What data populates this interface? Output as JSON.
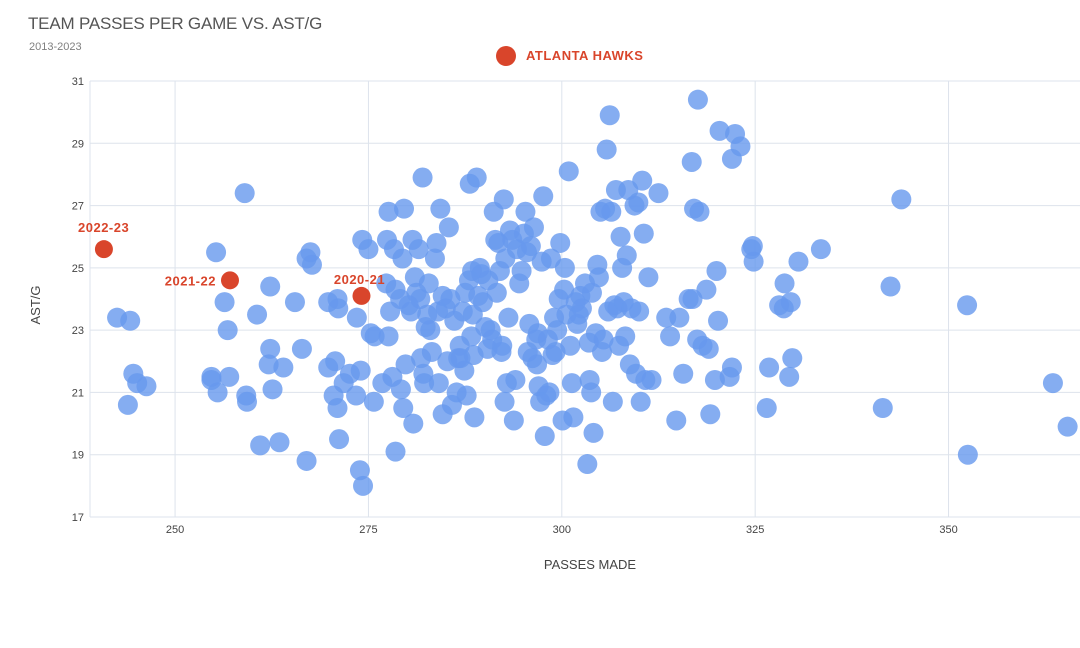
{
  "title": "TEAM PASSES PER GAME VS. AST/G",
  "subtitle": "2013-2023",
  "chart_data": {
    "type": "scatter",
    "title": "TEAM PASSES PER GAME VS. AST/G",
    "subtitle": "2013-2023",
    "xlabel": "PASSES MADE",
    "ylabel": "AST/G",
    "xlim": [
      239,
      367
    ],
    "ylim": [
      17,
      31
    ],
    "xticks": [
      250,
      275,
      300,
      325,
      350
    ],
    "yticks": [
      17,
      19,
      21,
      23,
      25,
      27,
      29,
      31
    ],
    "grid": true,
    "legend": [
      {
        "name": "ATLANTA HAWKS",
        "color": "#d9452b"
      }
    ],
    "colors": {
      "all_teams": "#6699ee",
      "highlight": "#d9452b"
    },
    "highlights": [
      {
        "label": "2022-23",
        "x": 240.8,
        "y": 25.6
      },
      {
        "label": "2021-22",
        "x": 257.1,
        "y": 24.6
      },
      {
        "label": "2020-21",
        "x": 274.1,
        "y": 24.1
      }
    ],
    "points": [
      [
        242.5,
        23.4
      ],
      [
        244.2,
        23.3
      ],
      [
        244.6,
        21.6
      ],
      [
        245.1,
        21.3
      ],
      [
        246.3,
        21.2
      ],
      [
        243.9,
        20.6
      ],
      [
        254.7,
        21.5
      ],
      [
        254.7,
        21.4
      ],
      [
        255.5,
        21.0
      ],
      [
        255.3,
        25.5
      ],
      [
        256.4,
        23.9
      ],
      [
        256.8,
        23.0
      ],
      [
        257.0,
        21.5
      ],
      [
        259.0,
        27.4
      ],
      [
        259.2,
        20.9
      ],
      [
        259.3,
        20.7
      ],
      [
        260.6,
        23.5
      ],
      [
        261.0,
        19.3
      ],
      [
        262.3,
        24.4
      ],
      [
        262.3,
        22.4
      ],
      [
        262.1,
        21.9
      ],
      [
        262.6,
        21.1
      ],
      [
        263.5,
        19.4
      ],
      [
        264.0,
        21.8
      ],
      [
        265.5,
        23.9
      ],
      [
        266.4,
        22.4
      ],
      [
        267.0,
        25.3
      ],
      [
        267.5,
        25.5
      ],
      [
        267.7,
        25.1
      ],
      [
        267.0,
        18.8
      ],
      [
        269.8,
        23.9
      ],
      [
        269.8,
        21.8
      ],
      [
        270.5,
        20.9
      ],
      [
        270.7,
        22.0
      ],
      [
        271.0,
        24.0
      ],
      [
        271.1,
        23.7
      ],
      [
        271.2,
        19.5
      ],
      [
        271.0,
        20.5
      ],
      [
        271.8,
        21.3
      ],
      [
        272.6,
        21.6
      ],
      [
        273.4,
        20.9
      ],
      [
        273.5,
        23.4
      ],
      [
        273.9,
        18.5
      ],
      [
        274.0,
        21.7
      ],
      [
        274.3,
        18.0
      ],
      [
        274.2,
        25.9
      ],
      [
        275.0,
        25.6
      ],
      [
        275.3,
        22.9
      ],
      [
        275.8,
        22.8
      ],
      [
        275.7,
        20.7
      ],
      [
        276.8,
        21.3
      ],
      [
        277.4,
        25.9
      ],
      [
        277.6,
        26.8
      ],
      [
        277.3,
        24.5
      ],
      [
        277.8,
        23.6
      ],
      [
        277.6,
        22.8
      ],
      [
        278.1,
        21.5
      ],
      [
        278.3,
        25.6
      ],
      [
        278.5,
        24.3
      ],
      [
        278.5,
        19.1
      ],
      [
        279.1,
        24.0
      ],
      [
        279.2,
        21.1
      ],
      [
        279.5,
        20.5
      ],
      [
        279.4,
        25.3
      ],
      [
        279.6,
        26.9
      ],
      [
        279.8,
        21.9
      ],
      [
        280.2,
        23.8
      ],
      [
        280.5,
        23.6
      ],
      [
        280.7,
        25.9
      ],
      [
        280.8,
        20.0
      ],
      [
        281.0,
        24.7
      ],
      [
        281.2,
        24.2
      ],
      [
        281.5,
        25.6
      ],
      [
        281.7,
        24.0
      ],
      [
        281.8,
        22.1
      ],
      [
        282.0,
        27.9
      ],
      [
        282.1,
        21.6
      ],
      [
        282.2,
        21.3
      ],
      [
        282.4,
        23.1
      ],
      [
        282.6,
        23.5
      ],
      [
        282.8,
        24.5
      ],
      [
        283.0,
        23.0
      ],
      [
        283.2,
        22.3
      ],
      [
        283.6,
        25.3
      ],
      [
        283.8,
        25.8
      ],
      [
        284.0,
        23.6
      ],
      [
        284.1,
        21.3
      ],
      [
        284.3,
        26.9
      ],
      [
        284.6,
        20.3
      ],
      [
        284.6,
        24.1
      ],
      [
        285.0,
        23.7
      ],
      [
        285.2,
        22.0
      ],
      [
        285.4,
        26.3
      ],
      [
        285.6,
        24.0
      ],
      [
        285.8,
        20.6
      ],
      [
        286.1,
        23.3
      ],
      [
        286.4,
        21.0
      ],
      [
        286.6,
        22.1
      ],
      [
        286.8,
        22.5
      ],
      [
        286.9,
        22.1
      ],
      [
        287.2,
        23.6
      ],
      [
        287.4,
        21.7
      ],
      [
        287.5,
        24.2
      ],
      [
        287.7,
        20.9
      ],
      [
        288.0,
        24.6
      ],
      [
        288.1,
        27.7
      ],
      [
        288.3,
        22.8
      ],
      [
        288.4,
        24.9
      ],
      [
        288.5,
        23.5
      ],
      [
        288.6,
        22.2
      ],
      [
        288.7,
        20.2
      ],
      [
        289.0,
        27.9
      ],
      [
        289.2,
        24.1
      ],
      [
        289.4,
        25.0
      ],
      [
        289.6,
        24.8
      ],
      [
        289.8,
        23.9
      ],
      [
        290.1,
        23.1
      ],
      [
        290.4,
        22.4
      ],
      [
        290.5,
        24.6
      ],
      [
        290.8,
        23.0
      ],
      [
        291.0,
        22.7
      ],
      [
        291.2,
        26.8
      ],
      [
        291.4,
        25.9
      ],
      [
        291.6,
        24.2
      ],
      [
        291.8,
        25.8
      ],
      [
        292.0,
        24.9
      ],
      [
        292.2,
        22.3
      ],
      [
        292.3,
        22.5
      ],
      [
        292.5,
        27.2
      ],
      [
        292.6,
        20.7
      ],
      [
        292.7,
        25.3
      ],
      [
        292.9,
        21.3
      ],
      [
        293.1,
        23.4
      ],
      [
        293.3,
        26.2
      ],
      [
        293.6,
        25.9
      ],
      [
        293.8,
        20.1
      ],
      [
        294.0,
        21.4
      ],
      [
        294.2,
        25.6
      ],
      [
        294.5,
        24.5
      ],
      [
        294.8,
        24.9
      ],
      [
        295.1,
        26.1
      ],
      [
        295.3,
        26.8
      ],
      [
        295.5,
        25.5
      ],
      [
        295.6,
        22.3
      ],
      [
        295.8,
        23.2
      ],
      [
        296.0,
        25.7
      ],
      [
        296.2,
        22.1
      ],
      [
        296.4,
        26.3
      ],
      [
        296.7,
        22.7
      ],
      [
        296.8,
        21.9
      ],
      [
        296.9,
        22.9
      ],
      [
        297.0,
        21.2
      ],
      [
        297.2,
        20.7
      ],
      [
        297.4,
        25.2
      ],
      [
        297.6,
        27.3
      ],
      [
        297.8,
        19.6
      ],
      [
        298.0,
        20.9
      ],
      [
        298.2,
        22.7
      ],
      [
        298.4,
        21.0
      ],
      [
        298.6,
        25.3
      ],
      [
        298.8,
        22.2
      ],
      [
        299.0,
        23.4
      ],
      [
        299.2,
        22.3
      ],
      [
        299.4,
        23.0
      ],
      [
        299.6,
        24.0
      ],
      [
        299.8,
        25.8
      ],
      [
        300.1,
        20.1
      ],
      [
        300.3,
        24.3
      ],
      [
        300.4,
        25.0
      ],
      [
        300.6,
        23.5
      ],
      [
        300.9,
        28.1
      ],
      [
        301.1,
        22.5
      ],
      [
        301.3,
        21.3
      ],
      [
        301.5,
        20.2
      ],
      [
        301.8,
        23.9
      ],
      [
        302.0,
        23.2
      ],
      [
        302.2,
        23.5
      ],
      [
        302.4,
        24.1
      ],
      [
        302.6,
        23.7
      ],
      [
        303.0,
        24.5
      ],
      [
        303.3,
        18.7
      ],
      [
        303.5,
        22.6
      ],
      [
        303.6,
        21.4
      ],
      [
        303.8,
        21.0
      ],
      [
        303.9,
        24.2
      ],
      [
        304.1,
        19.7
      ],
      [
        304.4,
        22.9
      ],
      [
        304.6,
        25.1
      ],
      [
        304.8,
        24.7
      ],
      [
        305.0,
        26.8
      ],
      [
        305.2,
        22.3
      ],
      [
        305.4,
        22.7
      ],
      [
        305.6,
        26.9
      ],
      [
        305.8,
        28.8
      ],
      [
        306.0,
        23.6
      ],
      [
        306.2,
        29.9
      ],
      [
        306.4,
        26.8
      ],
      [
        306.6,
        20.7
      ],
      [
        306.8,
        23.8
      ],
      [
        307.0,
        27.5
      ],
      [
        307.2,
        23.7
      ],
      [
        307.4,
        22.5
      ],
      [
        307.6,
        26.0
      ],
      [
        307.8,
        25.0
      ],
      [
        308.0,
        23.9
      ],
      [
        308.2,
        22.8
      ],
      [
        308.4,
        25.4
      ],
      [
        308.6,
        27.5
      ],
      [
        308.8,
        21.9
      ],
      [
        309.0,
        23.7
      ],
      [
        309.4,
        27.0
      ],
      [
        309.6,
        21.6
      ],
      [
        309.9,
        27.1
      ],
      [
        310.0,
        23.6
      ],
      [
        310.2,
        20.7
      ],
      [
        310.4,
        27.8
      ],
      [
        310.6,
        26.1
      ],
      [
        310.8,
        21.4
      ],
      [
        311.2,
        24.7
      ],
      [
        311.6,
        21.4
      ],
      [
        312.5,
        27.4
      ],
      [
        313.5,
        23.4
      ],
      [
        314.0,
        22.8
      ],
      [
        314.8,
        20.1
      ],
      [
        315.2,
        23.4
      ],
      [
        315.7,
        21.6
      ],
      [
        316.4,
        24.0
      ],
      [
        316.8,
        28.4
      ],
      [
        316.9,
        24.0
      ],
      [
        317.1,
        26.9
      ],
      [
        317.5,
        22.7
      ],
      [
        317.8,
        26.8
      ],
      [
        317.6,
        30.4
      ],
      [
        318.2,
        22.5
      ],
      [
        318.7,
        24.3
      ],
      [
        319.0,
        22.4
      ],
      [
        319.2,
        20.3
      ],
      [
        319.8,
        21.4
      ],
      [
        320.0,
        24.9
      ],
      [
        320.2,
        23.3
      ],
      [
        320.4,
        29.4
      ],
      [
        321.7,
        21.5
      ],
      [
        322.0,
        21.8
      ],
      [
        322.0,
        28.5
      ],
      [
        322.4,
        29.3
      ],
      [
        323.1,
        28.9
      ],
      [
        324.5,
        25.6
      ],
      [
        324.7,
        25.7
      ],
      [
        324.8,
        25.2
      ],
      [
        326.5,
        20.5
      ],
      [
        326.8,
        21.8
      ],
      [
        328.1,
        23.8
      ],
      [
        328.7,
        23.7
      ],
      [
        328.8,
        24.5
      ],
      [
        329.4,
        21.5
      ],
      [
        329.6,
        23.9
      ],
      [
        329.8,
        22.1
      ],
      [
        330.6,
        25.2
      ],
      [
        333.5,
        25.6
      ],
      [
        341.5,
        20.5
      ],
      [
        342.5,
        24.4
      ],
      [
        343.9,
        27.2
      ],
      [
        352.4,
        23.8
      ],
      [
        352.5,
        19.0
      ],
      [
        363.5,
        21.3
      ],
      [
        365.4,
        19.9
      ]
    ]
  }
}
